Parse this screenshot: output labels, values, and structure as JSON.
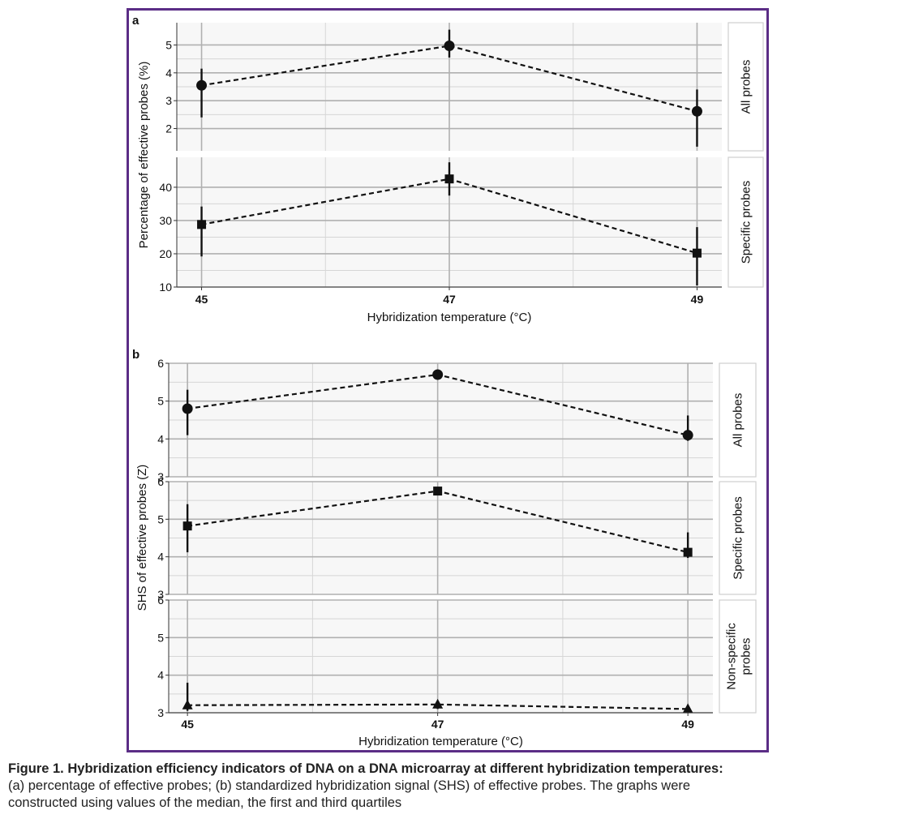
{
  "colors": {
    "frame": "#5b2d86",
    "panel_bg": "#f7f7f7",
    "grid_major": "#b0b0b0",
    "grid_minor": "#d6d6d6",
    "marks": "#111111",
    "strip_bg": "#ffffff",
    "strip_border": "#cfcfcf"
  },
  "caption": {
    "title": "Figure 1. Hybridization efficiency indicators of DNA on a DNA microarray at different hybridization temperatures:",
    "line1": "(a) percentage of effective probes; (b) standardized hybridization signal (SHS) of effective probes. The graphs were",
    "line2": "constructed using values of the median, the first and third quartiles"
  },
  "chart_data": [
    {
      "type": "line",
      "panel_label": "a",
      "xlabel": "Hybridization temperature (°C)",
      "ylabel": "Percentage of effective probes (%)",
      "x": [
        45,
        47,
        49
      ],
      "x_tick_labels": [
        "45",
        "47",
        "49"
      ],
      "grid": true,
      "facets": [
        {
          "strip": "All probes",
          "marker": "circle",
          "ylim": [
            1.2,
            5.8
          ],
          "y_ticks": [
            2,
            3,
            4,
            5
          ],
          "y_tick_labels": [
            "2",
            "3",
            "4",
            "5"
          ],
          "median": [
            3.55,
            4.97,
            2.62
          ],
          "q1": [
            2.4,
            4.55,
            1.35
          ],
          "q3": [
            4.15,
            5.55,
            3.4
          ]
        },
        {
          "strip": "Specific probes",
          "marker": "square",
          "ylim": [
            10,
            49
          ],
          "y_ticks": [
            10,
            20,
            30,
            40
          ],
          "y_tick_labels": [
            "10",
            "20",
            "30",
            "40"
          ],
          "median": [
            28.8,
            42.5,
            20.2
          ],
          "q1": [
            19.2,
            37.5,
            10.5
          ],
          "q3": [
            34.2,
            47.5,
            28
          ]
        }
      ]
    },
    {
      "type": "line",
      "panel_label": "b",
      "xlabel": "Hybridization temperature (°C)",
      "ylabel": "SHS of effective probes (Z)",
      "x": [
        45,
        47,
        49
      ],
      "x_tick_labels": [
        "45",
        "47",
        "49"
      ],
      "grid": true,
      "facets": [
        {
          "strip": "All probes",
          "marker": "circle",
          "ylim": [
            3,
            6
          ],
          "y_ticks": [
            3,
            4,
            5,
            6
          ],
          "y_tick_labels": [
            "3",
            "4",
            "5",
            "6"
          ],
          "median": [
            4.8,
            5.7,
            4.1
          ],
          "q1": [
            4.1,
            5.65,
            3.95
          ],
          "q3": [
            5.3,
            5.75,
            4.62
          ]
        },
        {
          "strip": "Specific probes",
          "marker": "square",
          "ylim": [
            3,
            6
          ],
          "y_ticks": [
            3,
            4,
            5,
            6
          ],
          "y_tick_labels": [
            "3",
            "4",
            "5",
            "6"
          ],
          "median": [
            4.82,
            5.75,
            4.12
          ],
          "q1": [
            4.12,
            5.7,
            3.97
          ],
          "q3": [
            5.4,
            5.8,
            4.65
          ]
        },
        {
          "strip": "Non-specific probes",
          "marker": "triangle",
          "ylim": [
            3,
            6
          ],
          "y_ticks": [
            3,
            4,
            5,
            6
          ],
          "y_tick_labels": [
            "3",
            "4",
            "5",
            "6"
          ],
          "median": [
            3.2,
            3.22,
            3.1
          ],
          "q1": [
            3.05,
            3.1,
            3.0
          ],
          "q3": [
            3.8,
            3.3,
            3.15
          ]
        }
      ]
    }
  ]
}
